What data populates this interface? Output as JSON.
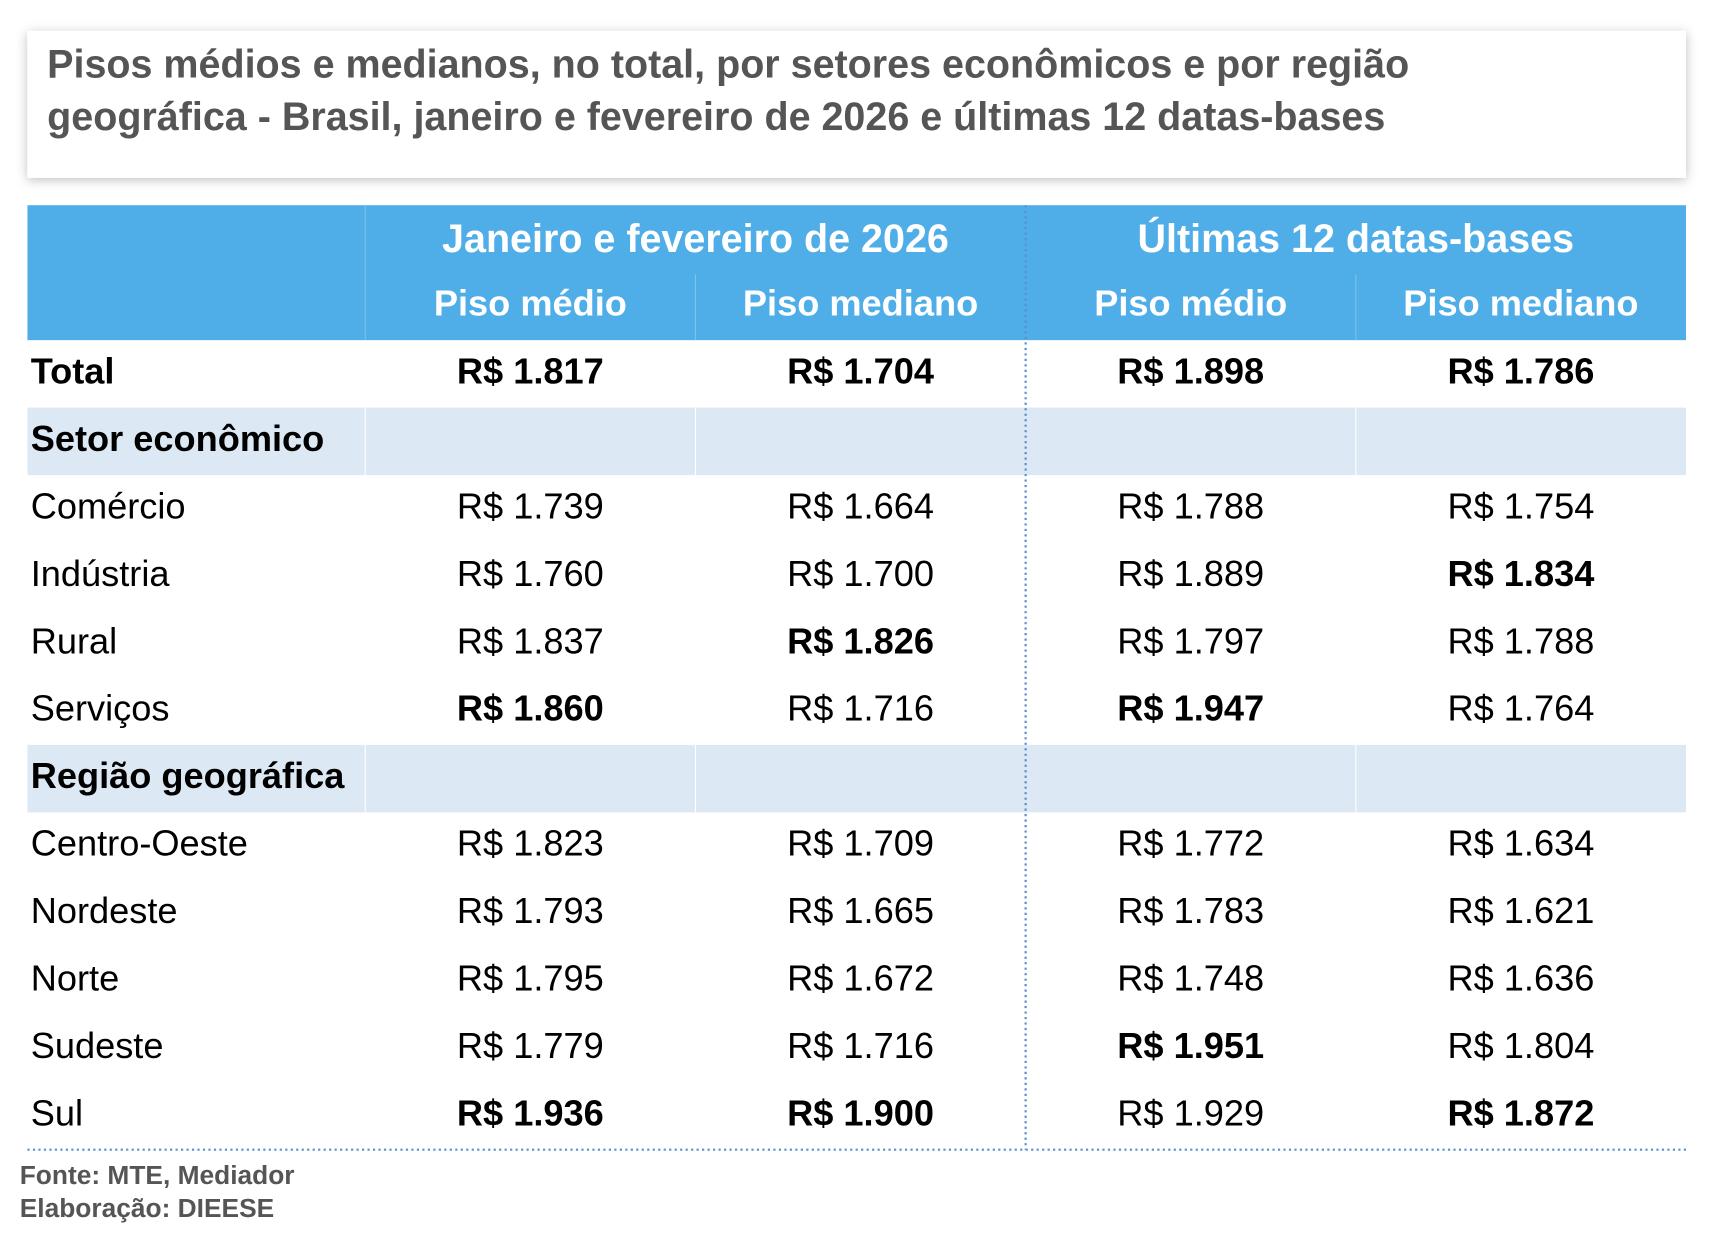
{
  "header": {
    "title_lines": [
      "Pisos médios e medianos, no total, por setores econômicos e por região",
      "geográfica - Brasil, janeiro e fevereiro de 2026 e últimas 12 datas-bases"
    ]
  },
  "table": {
    "groups": [
      "Janeiro e fevereiro de 2026",
      "Últimas 12 datas-bases"
    ],
    "columns": [
      "Piso médio",
      "Piso mediano",
      "Piso médio",
      "Piso mediano"
    ],
    "rows": [
      {
        "label": "Total",
        "cells": [
          "R$ 1.817",
          "R$ 1.704",
          "R$ 1.898",
          "R$ 1.786"
        ],
        "bold": [
          true,
          true,
          true,
          true
        ],
        "label_bold": true
      },
      {
        "section": "Setor econômico"
      },
      {
        "label": "Comércio",
        "cells": [
          "R$ 1.739",
          "R$ 1.664",
          "R$ 1.788",
          "R$ 1.754"
        ],
        "bold": [
          false,
          false,
          false,
          false
        ]
      },
      {
        "label": "Indústria",
        "cells": [
          "R$ 1.760",
          "R$ 1.700",
          "R$ 1.889",
          "R$ 1.834"
        ],
        "bold": [
          false,
          false,
          false,
          true
        ]
      },
      {
        "label": "Rural",
        "cells": [
          "R$ 1.837",
          "R$ 1.826",
          "R$ 1.797",
          "R$ 1.788"
        ],
        "bold": [
          false,
          true,
          false,
          false
        ]
      },
      {
        "label": "Serviços",
        "cells": [
          "R$ 1.860",
          "R$ 1.716",
          "R$ 1.947",
          "R$ 1.764"
        ],
        "bold": [
          true,
          false,
          true,
          false
        ]
      },
      {
        "section": "Região geográfica"
      },
      {
        "label": "Centro-Oeste",
        "cells": [
          "R$ 1.823",
          "R$ 1.709",
          "R$ 1.772",
          "R$ 1.634"
        ],
        "bold": [
          false,
          false,
          false,
          false
        ]
      },
      {
        "label": "Nordeste",
        "cells": [
          "R$ 1.793",
          "R$ 1.665",
          "R$ 1.783",
          "R$ 1.621"
        ],
        "bold": [
          false,
          false,
          false,
          false
        ]
      },
      {
        "label": "Norte",
        "cells": [
          "R$ 1.795",
          "R$ 1.672",
          "R$ 1.748",
          "R$ 1.636"
        ],
        "bold": [
          false,
          false,
          false,
          false
        ]
      },
      {
        "label": "Sudeste",
        "cells": [
          "R$ 1.779",
          "R$ 1.716",
          "R$ 1.951",
          "R$ 1.804"
        ],
        "bold": [
          false,
          false,
          true,
          false
        ]
      },
      {
        "label": "Sul",
        "cells": [
          "R$ 1.936",
          "R$ 1.900",
          "R$ 1.929",
          "R$ 1.872"
        ],
        "bold": [
          true,
          true,
          false,
          true
        ]
      }
    ]
  },
  "footer": {
    "source": "Fonte: MTE, Mediador",
    "credit": "Elaboração: DIEESE"
  }
}
